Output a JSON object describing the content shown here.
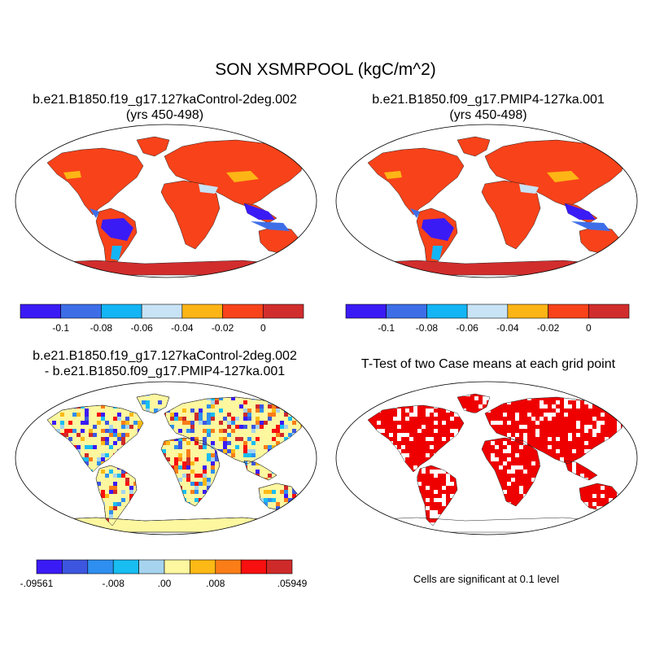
{
  "figure_title": "SON XSMRPOOL (kgC/m^2)",
  "panels": {
    "control": {
      "title_line1": "b.e21.B1850.f19_g17.127kaControl-2deg.002",
      "title_line2": "(yrs 450-498)"
    },
    "pmip4": {
      "title_line1": "b.e21.B1850.f09_g17.PMIP4-127ka.001",
      "title_line2": "(yrs 450-498)"
    },
    "difference": {
      "title_line1": "b.e21.B1850.f19_g17.127kaControl-2deg.002",
      "title_line2": "- b.e21.B1850.f09_g17.PMIP4-127ka.001"
    },
    "ttest": {
      "title_line1": "T-Test of two Case means at each grid point",
      "note": "Cells are significant at 0.1 level"
    }
  },
  "colorbars": {
    "absolute": {
      "colors": [
        "#3b1bf5",
        "#3d6ee8",
        "#14b5f5",
        "#c8e3f5",
        "#fdb515",
        "#f8421a",
        "#d22d2d"
      ],
      "tick_labels": [
        "-0.1",
        "-0.08",
        "-0.06",
        "-0.04",
        "-0.02",
        "0"
      ]
    },
    "difference": {
      "colors": [
        "#3b1bf5",
        "#3d56e0",
        "#2e8ff0",
        "#18bdf2",
        "#a6d3ee",
        "#fdf7a0",
        "#fdb915",
        "#fb7d17",
        "#f80f0f",
        "#cf2a2a"
      ],
      "tick_labels": [
        ".09561",
        "-.008",
        ".00",
        ".008",
        ".05949"
      ],
      "first_label_prefix": "-"
    }
  },
  "colors": {
    "land_dominant": "#f8421a",
    "tropical_low": "#3b1bf5",
    "antarctica": "#d22d2d",
    "significance": "#ee0000",
    "difference_base": "#fdf7a0"
  }
}
